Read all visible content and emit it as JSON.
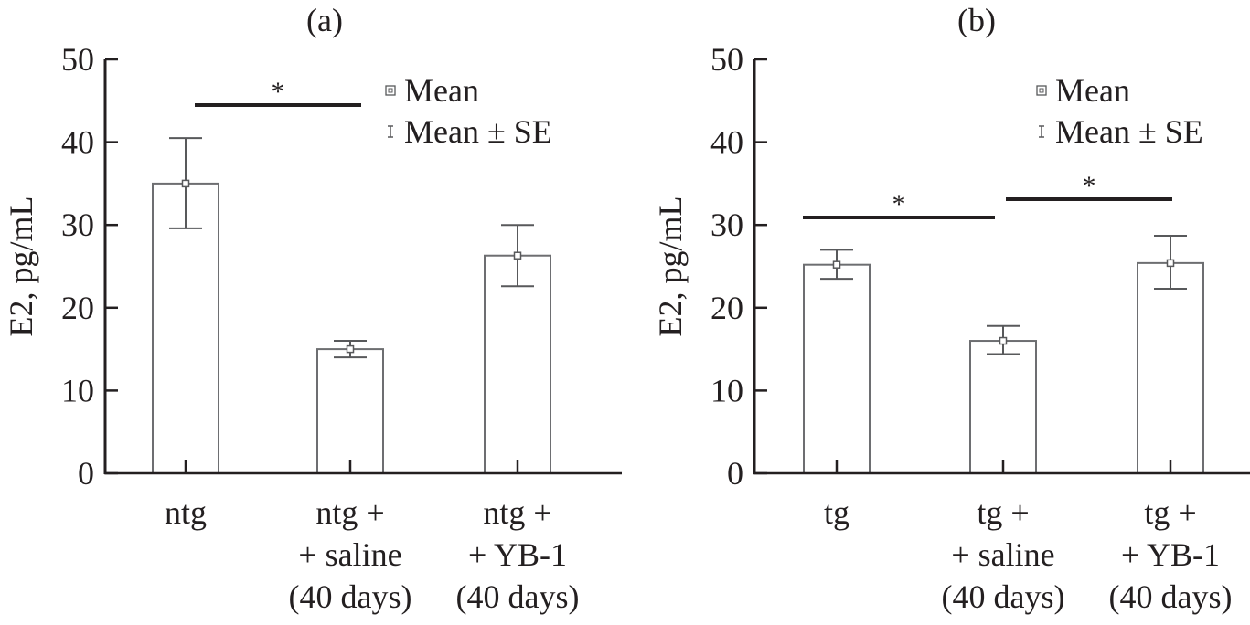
{
  "chart_data": [
    {
      "type": "bar",
      "panel_label": "(a)",
      "ylabel": "E2, pg/mL",
      "ylim": [
        0,
        50
      ],
      "yticks": [
        0,
        10,
        20,
        30,
        40,
        50
      ],
      "categories": [
        [
          "ntg"
        ],
        [
          "ntg +",
          "+ saline",
          "(40 days)"
        ],
        [
          "ntg +",
          "+ YB-1",
          "(40 days)"
        ]
      ],
      "values": [
        35.0,
        15.0,
        26.3
      ],
      "error_upper": [
        40.5,
        16.0,
        30.0
      ],
      "error_lower": [
        29.6,
        14.0,
        22.6
      ],
      "significance": [
        {
          "from": 0,
          "to": 1,
          "label": "*"
        }
      ],
      "legend": {
        "placement": "top-right",
        "entries": [
          "Mean",
          "Mean ± SE"
        ]
      }
    },
    {
      "type": "bar",
      "panel_label": "(b)",
      "ylabel": "E2, pg/mL",
      "ylim": [
        0,
        50
      ],
      "yticks": [
        0,
        10,
        20,
        30,
        40,
        50
      ],
      "categories": [
        [
          "tg"
        ],
        [
          "tg +",
          "+ saline",
          "(40 days)"
        ],
        [
          "tg +",
          "+ YB-1",
          "(40 days)"
        ]
      ],
      "values": [
        25.2,
        16.0,
        25.4
      ],
      "error_upper": [
        27.0,
        17.8,
        28.7
      ],
      "error_lower": [
        23.5,
        14.4,
        22.3
      ],
      "significance": [
        {
          "from": 0,
          "to": 1,
          "label": "*"
        },
        {
          "from": 1,
          "to": 2,
          "label": "*"
        }
      ],
      "legend": {
        "placement": "top-right",
        "entries": [
          "Mean",
          "Mean ± SE"
        ]
      }
    }
  ],
  "colors": {
    "axis": "#231f20",
    "bar_edge": "#6d6e71",
    "error": "#58595b",
    "sig_line": "#231f20"
  }
}
